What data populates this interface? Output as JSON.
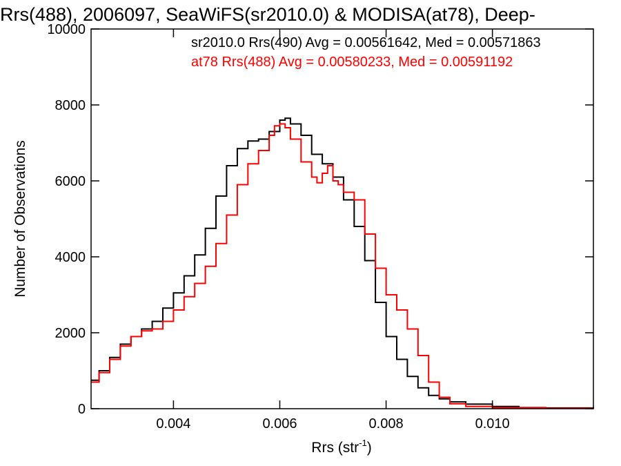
{
  "chart_data": {
    "type": "line",
    "title": "Rrs(488), 2006097, SeaWiFS(sr2010.0) & MODISA(at78), Deep-",
    "xlabel_main": "Rrs (str",
    "xlabel_sup": "-1",
    "xlabel_end": ")",
    "ylabel": "Number of Observations",
    "xlim": [
      0.00245,
      0.0119
    ],
    "ylim": [
      0,
      10000
    ],
    "grid": false,
    "x_ticks": [
      0.004,
      0.006,
      0.008,
      0.01
    ],
    "x_tick_labels": [
      "0.004",
      "0.006",
      "0.008",
      "0.010"
    ],
    "y_ticks": [
      0,
      2000,
      4000,
      6000,
      8000,
      10000
    ],
    "y_tick_labels": [
      "0",
      "2000",
      "4000",
      "6000",
      "8000",
      "10000"
    ],
    "annotations": [
      {
        "text": "sr2010.0 Rrs(490) Avg = 0.00561642, Med = 0.00571863",
        "color": "#000000"
      },
      {
        "text": "at78 Rrs(488) Avg = 0.00580233, Med = 0.00591192",
        "color": "#ff0000"
      }
    ],
    "series": [
      {
        "color": "#000000",
        "points": [
          [
            0.00245,
            750
          ],
          [
            0.0026,
            1000
          ],
          [
            0.0028,
            1350
          ],
          [
            0.003,
            1700
          ],
          [
            0.0032,
            1900
          ],
          [
            0.0034,
            2100
          ],
          [
            0.0036,
            2300
          ],
          [
            0.0038,
            2650
          ],
          [
            0.004,
            3050
          ],
          [
            0.0042,
            3500
          ],
          [
            0.0044,
            4050
          ],
          [
            0.0046,
            4750
          ],
          [
            0.0048,
            5600
          ],
          [
            0.005,
            6400
          ],
          [
            0.0052,
            6850
          ],
          [
            0.0054,
            7050
          ],
          [
            0.0056,
            7100
          ],
          [
            0.0058,
            7300
          ],
          [
            0.006,
            7600
          ],
          [
            0.0061,
            7650
          ],
          [
            0.0062,
            7500
          ],
          [
            0.0064,
            7200
          ],
          [
            0.0066,
            6700
          ],
          [
            0.0068,
            6450
          ],
          [
            0.007,
            6100
          ],
          [
            0.0072,
            5500
          ],
          [
            0.0074,
            4800
          ],
          [
            0.0076,
            3900
          ],
          [
            0.0078,
            2800
          ],
          [
            0.008,
            1900
          ],
          [
            0.0082,
            1300
          ],
          [
            0.0084,
            850
          ],
          [
            0.0086,
            550
          ],
          [
            0.0088,
            350
          ],
          [
            0.009,
            260
          ],
          [
            0.0092,
            180
          ],
          [
            0.0095,
            120
          ],
          [
            0.01,
            60
          ],
          [
            0.0105,
            30
          ],
          [
            0.011,
            20
          ],
          [
            0.0119,
            10
          ]
        ]
      },
      {
        "color": "#ff0000",
        "points": [
          [
            0.00245,
            700
          ],
          [
            0.0026,
            950
          ],
          [
            0.0028,
            1300
          ],
          [
            0.003,
            1650
          ],
          [
            0.0032,
            1900
          ],
          [
            0.0034,
            2050
          ],
          [
            0.0036,
            2100
          ],
          [
            0.0038,
            2300
          ],
          [
            0.004,
            2600
          ],
          [
            0.0042,
            2950
          ],
          [
            0.0044,
            3300
          ],
          [
            0.0046,
            3750
          ],
          [
            0.0048,
            4350
          ],
          [
            0.005,
            5100
          ],
          [
            0.0052,
            5900
          ],
          [
            0.0054,
            6450
          ],
          [
            0.0056,
            6800
          ],
          [
            0.0058,
            7200
          ],
          [
            0.0059,
            7450
          ],
          [
            0.006,
            7500
          ],
          [
            0.0061,
            7400
          ],
          [
            0.0062,
            7100
          ],
          [
            0.0064,
            6500
          ],
          [
            0.0066,
            6100
          ],
          [
            0.0067,
            5950
          ],
          [
            0.0068,
            6200
          ],
          [
            0.0069,
            6400
          ],
          [
            0.007,
            6000
          ],
          [
            0.0071,
            5900
          ],
          [
            0.0072,
            5700
          ],
          [
            0.0074,
            5500
          ],
          [
            0.0076,
            4600
          ],
          [
            0.0078,
            3700
          ],
          [
            0.008,
            3000
          ],
          [
            0.0082,
            2600
          ],
          [
            0.0084,
            2100
          ],
          [
            0.0086,
            1400
          ],
          [
            0.0088,
            700
          ],
          [
            0.009,
            300
          ],
          [
            0.0092,
            130
          ],
          [
            0.0095,
            60
          ],
          [
            0.01,
            30
          ],
          [
            0.011,
            10
          ],
          [
            0.0119,
            5
          ]
        ]
      }
    ]
  }
}
